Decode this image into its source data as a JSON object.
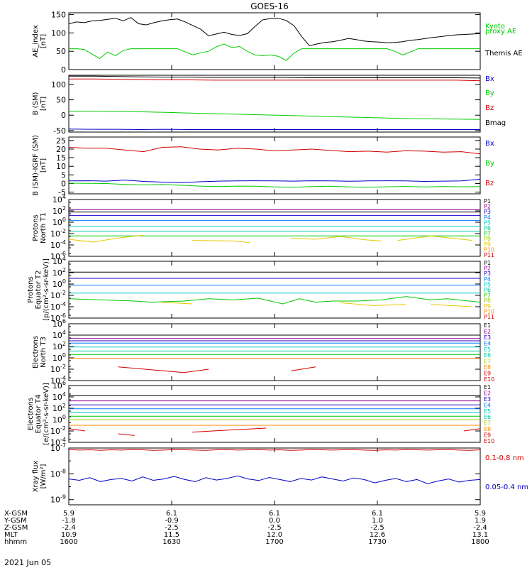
{
  "title": "GOES-16",
  "colors": {
    "black": "#000000",
    "red": "#d20000",
    "green": "#00cc00",
    "blue": "#0000c8",
    "p1": "#000000",
    "p2": "#8c008c",
    "p3": "#1e00c8",
    "p4": "#0078ff",
    "p5": "#00c8c8",
    "p6": "#00c8a0",
    "p7": "#00c800",
    "p8": "#a0d200",
    "p9": "#e6c800",
    "p10": "#ff8c00",
    "p11": "#d20000"
  },
  "chart_data": [
    {
      "type": "line",
      "ylabel": "AE_index\n[nT]",
      "ylim": [
        0,
        155
      ],
      "yticks": [
        "0",
        "50",
        "100",
        "150"
      ],
      "series": [
        {
          "name": "Kyoto\nproxy AE",
          "color": "green",
          "values": [
            57,
            57,
            55,
            42,
            30,
            48,
            38,
            52,
            57,
            57,
            57,
            57,
            57,
            57,
            57,
            48,
            40,
            46,
            50,
            62,
            70,
            60,
            63,
            50,
            40,
            38,
            40,
            36,
            25,
            45,
            57,
            57,
            57,
            57,
            57,
            57,
            57,
            57,
            57,
            57,
            57,
            57,
            50,
            40,
            48,
            57,
            57,
            57,
            57,
            57,
            57,
            57,
            57,
            57
          ]
        },
        {
          "name": "Themis AE",
          "color": "black",
          "values": [
            125,
            130,
            128,
            133,
            134,
            137,
            140,
            133,
            142,
            125,
            122,
            128,
            133,
            136,
            138,
            130,
            120,
            110,
            92,
            97,
            102,
            96,
            93,
            98,
            118,
            136,
            139,
            140,
            134,
            120,
            90,
            65,
            70,
            74,
            76,
            80,
            85,
            82,
            78,
            76,
            75,
            73,
            74,
            76,
            80,
            82,
            85,
            88,
            90,
            93,
            95,
            96,
            97,
            98
          ]
        }
      ]
    },
    {
      "type": "line",
      "ylabel": "B (SM)\n[nT]",
      "ylim": [
        -55,
        130
      ],
      "yticks": [
        "-50",
        "0",
        "50",
        "100"
      ],
      "series": [
        {
          "name": "Bx",
          "color": "blue",
          "values": [
            -45,
            -46,
            -46,
            -47,
            -46,
            -47,
            -47,
            -47,
            -47,
            -47,
            -47,
            -47,
            -47,
            -47,
            -47,
            -47,
            -47,
            -47
          ]
        },
        {
          "name": "By",
          "color": "green",
          "values": [
            13,
            13,
            12,
            11,
            9,
            7,
            5,
            3,
            1,
            -1,
            -3,
            -5,
            -7,
            -9,
            -11,
            -12,
            -13,
            -14
          ]
        },
        {
          "name": "Bz",
          "color": "red",
          "values": [
            118,
            118,
            117,
            116,
            115,
            115,
            114,
            114,
            114,
            114,
            114,
            114,
            114,
            114,
            114,
            114,
            114,
            112
          ]
        },
        {
          "name": "Bmag",
          "color": "black",
          "values": [
            127,
            127,
            126,
            125,
            124,
            124,
            123,
            123,
            123,
            123,
            122,
            122,
            122,
            122,
            122,
            122,
            122,
            121
          ]
        }
      ]
    },
    {
      "type": "line",
      "ylabel": "B (SM)-IGRF (SM)\n[nT]",
      "ylim": [
        -6,
        27
      ],
      "yticks": [
        "-5",
        "0",
        "5",
        "10",
        "15",
        "20",
        "25"
      ],
      "series": [
        {
          "name": "Bx",
          "color": "blue",
          "values": [
            1.5,
            1.6,
            1.4,
            2.0,
            1.2,
            0.8,
            0.5,
            1.0,
            1.4,
            1.5,
            1.6,
            1.5,
            1.4,
            1.6,
            1.5,
            1.3,
            1.5,
            1.6,
            1.5,
            1.2,
            1.4,
            1.5,
            2.5
          ]
        },
        {
          "name": "By",
          "color": "green",
          "values": [
            0.2,
            0.1,
            0.0,
            -0.5,
            -0.8,
            -0.6,
            -1.0,
            -1.5,
            -1.8,
            -1.5,
            -1.6,
            -2.0,
            -2.2,
            -1.8,
            -1.6,
            -2.0,
            -2.2,
            -1.9,
            -1.7,
            -2.0,
            -1.8,
            -1.9,
            -1.8
          ]
        },
        {
          "name": "Bz",
          "color": "red",
          "values": [
            21,
            20.5,
            20.5,
            19.5,
            18.5,
            21,
            21.3,
            20,
            19.5,
            20.5,
            20,
            19,
            19.5,
            20,
            19.2,
            18.5,
            18.8,
            18.2,
            19,
            18.8,
            18.2,
            18.5,
            17.2
          ]
        }
      ]
    },
    {
      "type": "line",
      "log": true,
      "ylabel": "Protons\nNorth T1",
      "ylim": [
        -6,
        4
      ],
      "ytick_exps": [
        -6,
        -4,
        -2,
        0,
        2,
        4
      ],
      "legend": [
        "P1",
        "P2",
        "P3",
        "P4",
        "P5",
        "P6",
        "P7",
        "P8",
        "P9",
        "P10",
        "P11"
      ],
      "flat_levels": [
        1.8,
        2.2,
        1.2,
        0.3,
        -0.7,
        -1.6,
        -2.4
      ],
      "flat_colors": [
        "p1",
        "p2",
        "p3",
        "p4",
        "p5",
        "p6",
        "p7"
      ],
      "segments": [
        {
          "color": "p9",
          "points": [
            [
              0.0,
              -3.0
            ],
            [
              0.06,
              -3.5
            ],
            [
              0.1,
              -3.0
            ],
            [
              0.14,
              -2.6
            ],
            [
              0.18,
              -2.3
            ]
          ]
        },
        {
          "color": "p9",
          "points": [
            [
              0.3,
              -3.2
            ],
            [
              0.4,
              -3.3
            ],
            [
              0.44,
              -3.6
            ]
          ]
        },
        {
          "color": "p9",
          "points": [
            [
              0.54,
              -2.8
            ],
            [
              0.6,
              -3.0
            ],
            [
              0.66,
              -2.5
            ],
            [
              0.72,
              -3.1
            ],
            [
              0.76,
              -3.3
            ]
          ]
        },
        {
          "color": "p9",
          "points": [
            [
              0.8,
              -3.2
            ],
            [
              0.84,
              -2.8
            ],
            [
              0.88,
              -2.4
            ],
            [
              0.93,
              -2.8
            ],
            [
              0.98,
              -3.2
            ]
          ]
        }
      ]
    },
    {
      "type": "line",
      "log": true,
      "ylabel": "Protons\nEquator T2\n[p/(cm²-s-sr-keV)]",
      "ylim": [
        -6,
        4
      ],
      "ytick_exps": [
        -6,
        -4,
        -2,
        0,
        2,
        4
      ],
      "legend": [
        "P1",
        "P2",
        "P3",
        "P4",
        "P5",
        "P6",
        "P7",
        "P8",
        "P9",
        "P10",
        "P11"
      ],
      "flat_levels": [
        2.1,
        1.0,
        -0.2,
        -1.6
      ],
      "flat_colors": [
        "p1",
        "p3",
        "p4",
        "p5"
      ],
      "segments": [
        {
          "color": "p7",
          "points": [
            [
              0.0,
              -2.6
            ],
            [
              0.08,
              -2.8
            ],
            [
              0.16,
              -3.0
            ],
            [
              0.2,
              -3.2
            ],
            [
              0.28,
              -3.0
            ],
            [
              0.34,
              -2.6
            ],
            [
              0.4,
              -2.8
            ],
            [
              0.46,
              -2.5
            ],
            [
              0.52,
              -3.5
            ],
            [
              0.56,
              -2.6
            ],
            [
              0.6,
              -3.2
            ],
            [
              0.64,
              -3.0
            ],
            [
              0.7,
              -3.0
            ],
            [
              0.76,
              -2.8
            ],
            [
              0.82,
              -2.2
            ],
            [
              0.88,
              -2.8
            ],
            [
              0.92,
              -2.6
            ],
            [
              1.0,
              -3.2
            ]
          ]
        },
        {
          "color": "p9",
          "points": [
            [
              0.22,
              -3.2
            ],
            [
              0.3,
              -3.5
            ]
          ]
        },
        {
          "color": "p9",
          "points": [
            [
              0.66,
              -3.3
            ],
            [
              0.74,
              -3.8
            ],
            [
              0.82,
              -3.6
            ]
          ]
        },
        {
          "color": "p9",
          "points": [
            [
              0.88,
              -3.6
            ],
            [
              0.98,
              -4.0
            ]
          ]
        }
      ]
    },
    {
      "type": "line",
      "log": true,
      "ylabel": "Electrons\nNorth T3",
      "ylim": [
        -4,
        6
      ],
      "ytick_exps": [
        -4,
        -2,
        0,
        2,
        4,
        6
      ],
      "legend": [
        "E1",
        "E2",
        "E3",
        "E4",
        "E5",
        "E6",
        "E7",
        "E8",
        "E9",
        "E10"
      ],
      "flat_levels": [
        4.0,
        3.4,
        3.0,
        2.6,
        1.9,
        1.2,
        0.6,
        -0.1
      ],
      "flat_colors": [
        "p1",
        "p2",
        "p3",
        "p4",
        "p5",
        "p6",
        "p7",
        "p10"
      ],
      "segments": [
        {
          "color": "p11",
          "points": [
            [
              0.12,
              -1.6
            ],
            [
              0.2,
              -2.1
            ],
            [
              0.28,
              -2.6
            ],
            [
              0.34,
              -2.0
            ]
          ]
        },
        {
          "color": "p11",
          "points": [
            [
              0.54,
              -2.3
            ],
            [
              0.6,
              -1.6
            ]
          ]
        }
      ]
    },
    {
      "type": "line",
      "log": true,
      "ylabel": "Electrons\nEquator T4\n[e/(cm²-s-sr-keV)]",
      "ylim": [
        -4,
        6
      ],
      "ytick_exps": [
        -4,
        -2,
        0,
        2,
        4,
        6
      ],
      "legend": [
        "E1",
        "E2",
        "E3",
        "E4",
        "E5",
        "E6",
        "E7",
        "E8",
        "E9",
        "E10"
      ],
      "flat_levels": [
        4.2,
        3.3,
        2.6,
        1.9,
        1.3,
        0.6,
        0.0,
        -1.0
      ],
      "flat_colors": [
        "p1",
        "p2",
        "p3",
        "p4",
        "p5",
        "p7",
        "p8",
        "p10"
      ],
      "segments": [
        {
          "color": "p11",
          "points": [
            [
              0.0,
              -1.6
            ],
            [
              0.04,
              -2.0
            ]
          ]
        },
        {
          "color": "p11",
          "points": [
            [
              0.12,
              -2.5
            ],
            [
              0.16,
              -2.8
            ]
          ]
        },
        {
          "color": "p11",
          "points": [
            [
              0.3,
              -2.2
            ],
            [
              0.4,
              -1.8
            ],
            [
              0.48,
              -1.5
            ]
          ]
        },
        {
          "color": "p11",
          "points": [
            [
              0.96,
              -2.0
            ],
            [
              1.0,
              -1.6
            ]
          ]
        }
      ]
    },
    {
      "type": "line",
      "log": true,
      "ylabel": "Xray flux\n[W/m²]",
      "ylim": [
        -9.2,
        -7
      ],
      "ytick_exps": [
        -9,
        -8,
        -7
      ],
      "series": [
        {
          "name": "0.1-0.8 nm",
          "color": "red",
          "values": [
            -7.06,
            -7.08,
            -7.07,
            -7.09,
            -7.07,
            -7.08,
            -7.06,
            -7.07,
            -7.09,
            -7.08,
            -7.06,
            -7.07,
            -7.08,
            -7.09,
            -7.07,
            -7.06,
            -7.08,
            -7.07,
            -7.06,
            -7.08,
            -7.07,
            -7.09,
            -7.08,
            -7.06,
            -7.07,
            -7.08,
            -7.07,
            -7.06,
            -7.08,
            -7.09,
            -7.07,
            -7.08,
            -7.06,
            -7.07,
            -7.08,
            -7.07,
            -7.06,
            -7.08,
            -7.09,
            -7.07
          ]
        },
        {
          "name": "0.05-0.4 nm",
          "color": "blue",
          "values": [
            -8.2,
            -8.25,
            -8.15,
            -8.3,
            -8.22,
            -8.18,
            -8.28,
            -8.12,
            -8.25,
            -8.2,
            -8.1,
            -8.22,
            -8.3,
            -8.15,
            -8.24,
            -8.18,
            -8.08,
            -8.2,
            -8.26,
            -8.14,
            -8.22,
            -8.3,
            -8.18,
            -8.24,
            -8.12,
            -8.2,
            -8.28,
            -8.16,
            -8.22,
            -8.35,
            -8.25,
            -8.18,
            -8.3,
            -8.22,
            -8.38,
            -8.28,
            -8.2,
            -8.32,
            -8.25,
            -8.22
          ]
        }
      ]
    }
  ],
  "x_axis": {
    "row_labels": [
      "X-GSM",
      "Y-GSM",
      "Z-GSM",
      "MLT",
      "hhmm"
    ],
    "columns": [
      [
        "5.9",
        "-1.8",
        "-2.4",
        "10.9",
        "1600"
      ],
      [
        "6.1",
        "-0.9",
        "-2.5",
        "11.5",
        "1630"
      ],
      [
        "6.1",
        "0.0",
        "-2.5",
        "12.0",
        "1700"
      ],
      [
        "6.1",
        "1.0",
        "-2.5",
        "12.6",
        "1730"
      ],
      [
        "5.9",
        "1.9",
        "-2.4",
        "13.1",
        "1800"
      ]
    ],
    "date": "2021 Jun 05"
  }
}
